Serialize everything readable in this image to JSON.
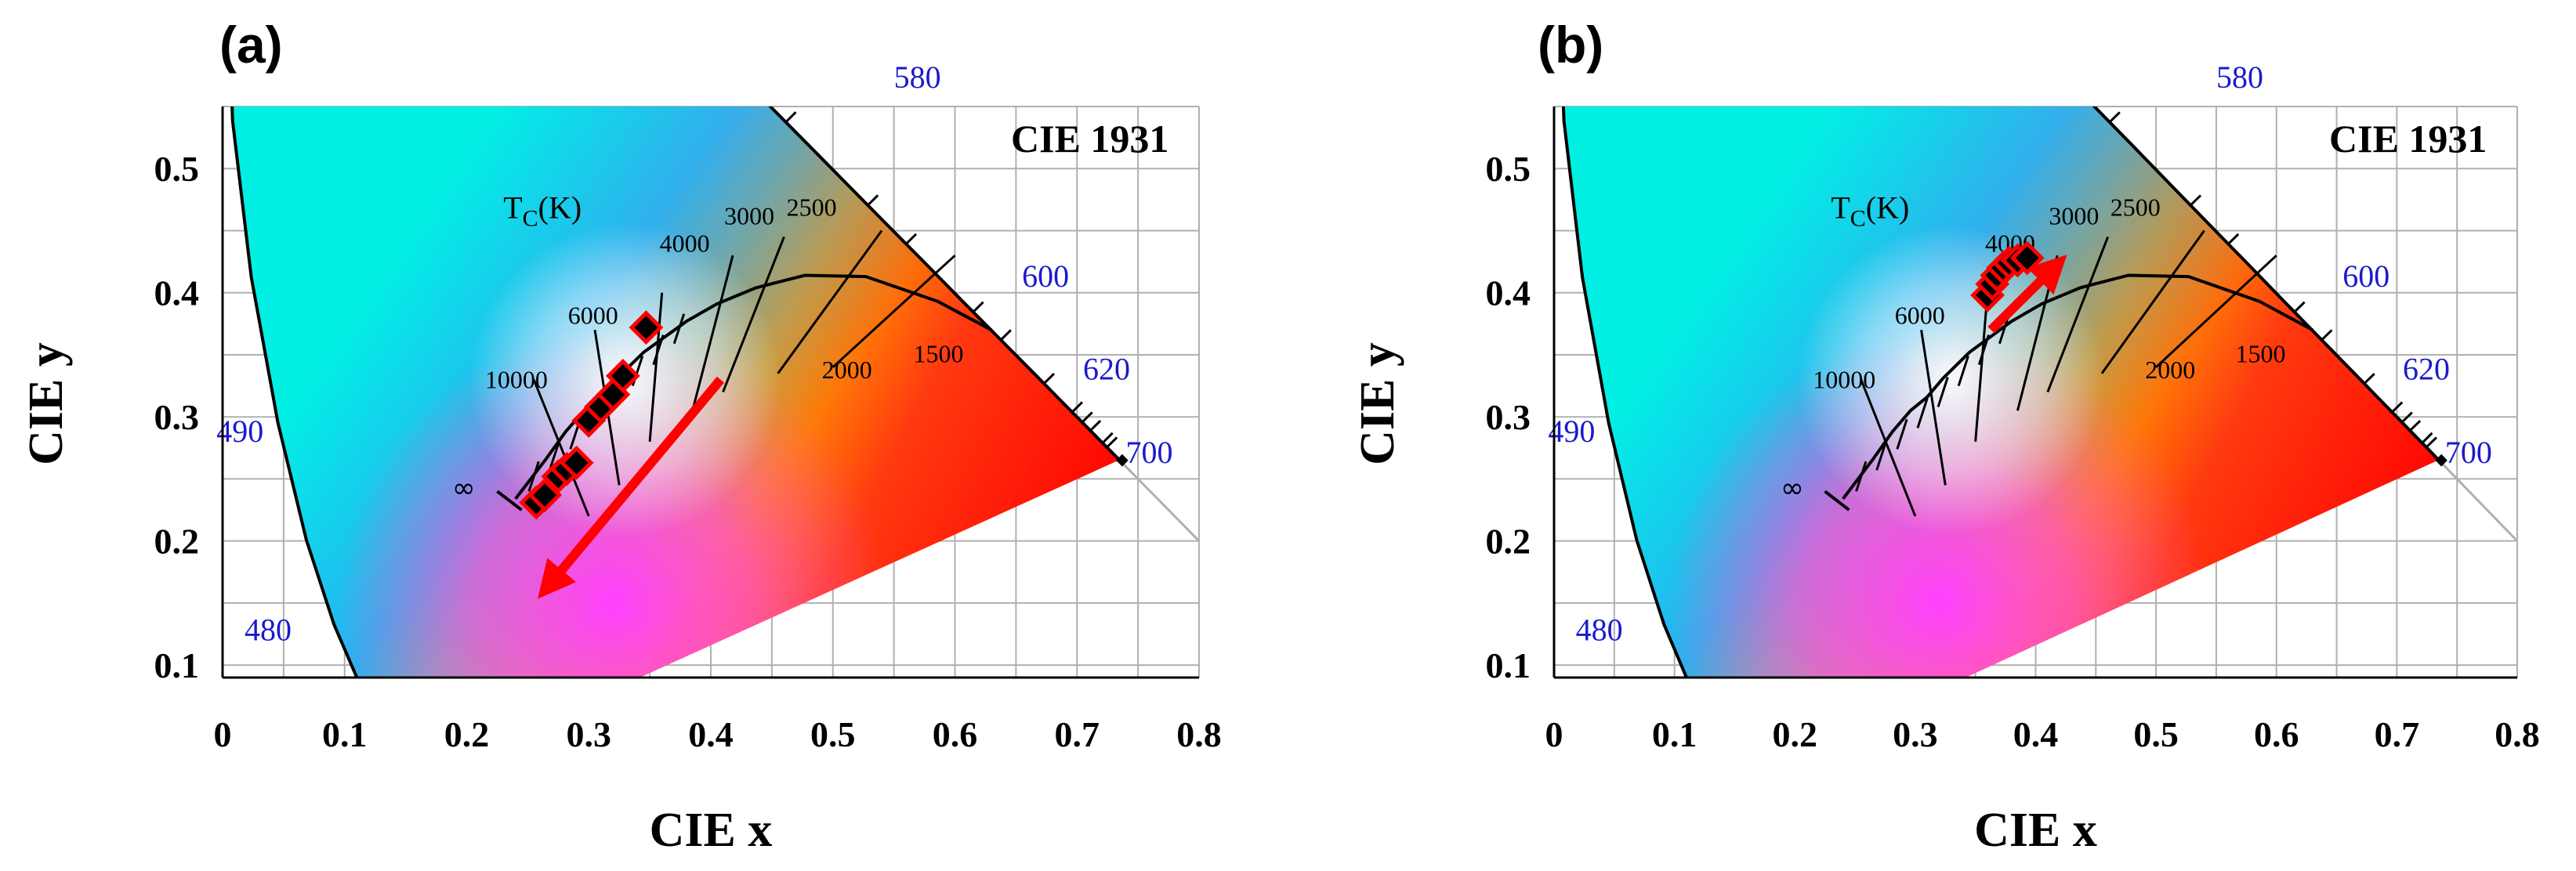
{
  "colors": {
    "wavelength_label": "#1a1acc",
    "marker_fill": "#000000",
    "marker_edge": "#ff0000",
    "arrow": "#ff0000",
    "grid": "#b0b0b0",
    "locus": "#000000"
  },
  "chart_data": [
    {
      "type": "scatter",
      "panel_label": "(a)",
      "title": "CIE 1931",
      "xlabel": "CIE x",
      "ylabel": "CIE y",
      "xlim": [
        0,
        0.8
      ],
      "ylim": [
        0.09,
        0.55
      ],
      "x_ticks": [
        "0",
        "0.1",
        "0.2",
        "0.3",
        "0.4",
        "0.5",
        "0.6",
        "0.7",
        "0.8"
      ],
      "y_ticks": [
        "0.1",
        "0.2",
        "0.3",
        "0.4",
        "0.5"
      ],
      "wavelength_labels": [
        "580",
        "600",
        "620",
        "700",
        "490",
        "480"
      ],
      "planckian_label": "T",
      "planckian_label_sub": "C",
      "planckian_label_unit": "(K)",
      "temperature_labels": [
        "10000",
        "6000",
        "4000",
        "3000",
        "2500",
        "2000",
        "1500"
      ],
      "infinity_label": "∞",
      "points": [
        {
          "x": 0.257,
          "y": 0.231
        },
        {
          "x": 0.264,
          "y": 0.237
        },
        {
          "x": 0.275,
          "y": 0.252
        },
        {
          "x": 0.282,
          "y": 0.258
        },
        {
          "x": 0.29,
          "y": 0.263
        },
        {
          "x": 0.3,
          "y": 0.297
        },
        {
          "x": 0.31,
          "y": 0.308
        },
        {
          "x": 0.32,
          "y": 0.318
        },
        {
          "x": 0.328,
          "y": 0.333
        },
        {
          "x": 0.347,
          "y": 0.372
        }
      ],
      "arrow": {
        "from": [
          0.408,
          0.33
        ],
        "to": [
          0.268,
          0.165
        ]
      }
    },
    {
      "type": "scatter",
      "panel_label": "(b)",
      "title": "CIE 1931",
      "xlabel": "CIE x",
      "ylabel": "CIE y",
      "xlim": [
        0,
        0.8
      ],
      "ylim": [
        0.09,
        0.55
      ],
      "x_ticks": [
        "0",
        "0.1",
        "0.2",
        "0.3",
        "0.4",
        "0.5",
        "0.6",
        "0.7",
        "0.8"
      ],
      "y_ticks": [
        "0.1",
        "0.2",
        "0.3",
        "0.4",
        "0.5"
      ],
      "wavelength_labels": [
        "580",
        "600",
        "620",
        "700",
        "490",
        "480"
      ],
      "planckian_label": "T",
      "planckian_label_sub": "C",
      "planckian_label_unit": "(K)",
      "temperature_labels": [
        "10000",
        "6000",
        "4000",
        "3000",
        "2500",
        "2000",
        "1500"
      ],
      "infinity_label": "∞",
      "points": [
        {
          "x": 0.36,
          "y": 0.398
        },
        {
          "x": 0.364,
          "y": 0.407
        },
        {
          "x": 0.368,
          "y": 0.414
        },
        {
          "x": 0.373,
          "y": 0.42
        },
        {
          "x": 0.378,
          "y": 0.424
        },
        {
          "x": 0.385,
          "y": 0.426
        },
        {
          "x": 0.393,
          "y": 0.428
        }
      ],
      "arrow": {
        "from": [
          0.363,
          0.37
        ],
        "to": [
          0.415,
          0.42
        ]
      }
    }
  ]
}
